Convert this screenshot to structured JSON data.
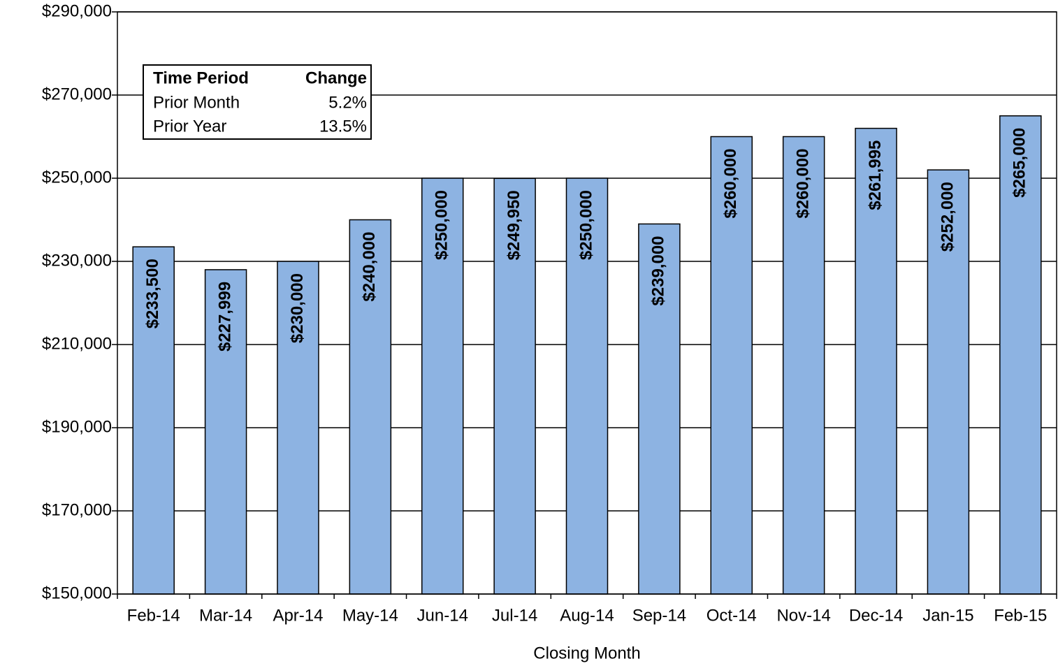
{
  "chart_data": {
    "type": "bar",
    "x_label": "Closing Month",
    "categories": [
      "Feb-14",
      "Mar-14",
      "Apr-14",
      "May-14",
      "Jun-14",
      "Jul-14",
      "Aug-14",
      "Sep-14",
      "Oct-14",
      "Nov-14",
      "Dec-14",
      "Jan-15",
      "Feb-15"
    ],
    "values": [
      233500,
      227999,
      230000,
      240000,
      250000,
      249950,
      250000,
      239000,
      260000,
      260000,
      261995,
      252000,
      265000
    ],
    "value_labels": [
      "$233,500",
      "$227,999",
      "$230,000",
      "$240,000",
      "$250,000",
      "$249,950",
      "$250,000",
      "$239,000",
      "$260,000",
      "$260,000",
      "$261,995",
      "$252,000",
      "$265,000"
    ],
    "color": "#8db3e2",
    "ylim": [
      150000,
      290000
    ],
    "yticks": [
      {
        "value": 150000,
        "label": "$150,000"
      },
      {
        "value": 170000,
        "label": "$170,000"
      },
      {
        "value": 190000,
        "label": "$190,000"
      },
      {
        "value": 210000,
        "label": "$210,000"
      },
      {
        "value": 230000,
        "label": "$230,000"
      },
      {
        "value": 250000,
        "label": "$250,000"
      },
      {
        "value": 270000,
        "label": "$270,000"
      },
      {
        "value": 290000,
        "label": "$290,000"
      }
    ],
    "grid": true,
    "inset_table": {
      "columns": [
        "Time Period",
        "Change"
      ],
      "rows": [
        [
          "Prior Month",
          "5.2%"
        ],
        [
          "Prior Year",
          "13.5%"
        ]
      ]
    }
  }
}
